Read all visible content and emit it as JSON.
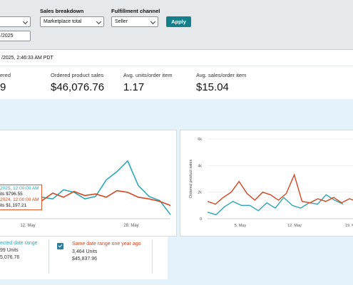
{
  "filters": {
    "date_range_end_partial": "/2025",
    "sales_breakdown_label": "Sales breakdown",
    "sales_breakdown_value": "Marketplace total",
    "fulfillment_label": "Fulfillment channel",
    "fulfillment_value": "Seller",
    "apply_label": "Apply"
  },
  "timestamp": "/2025, 2:46:33 AM PDT",
  "metrics": [
    {
      "label": "ered",
      "value": "9"
    },
    {
      "label": "Ordered product sales",
      "value": "$46,076.76"
    },
    {
      "label": "Avg. units/order item",
      "value": "1.17"
    },
    {
      "label": "Avg. sales/order item",
      "value": "$15.04"
    }
  ],
  "chart_left": {
    "type": "line",
    "x_ticks": [
      "12. May",
      "28. May"
    ],
    "tooltip": {
      "line1": "2025, 12:00:00 AM",
      "line2": "its $796.55",
      "line3": "2024, 12:00:00 AM",
      "line4": "its $1,197.21"
    },
    "series": [
      {
        "color": "#2ea7b5",
        "values": [
          0.16,
          0.22,
          0.28,
          0.25,
          0.26,
          0.24,
          0.35,
          0.32,
          0.24,
          0.27,
          0.47,
          0.57,
          0.7,
          0.4,
          0.27,
          0.22,
          0.05
        ]
      },
      {
        "color": "#d3461f",
        "values": [
          0.3,
          0.28,
          0.33,
          0.3,
          0.22,
          0.31,
          0.26,
          0.33,
          0.28,
          0.3,
          0.26,
          0.34,
          0.32,
          0.26,
          0.24,
          0.21,
          0.16
        ]
      }
    ]
  },
  "chart_right": {
    "type": "line",
    "ylabel": "Ordered product sales",
    "y_ticks": [
      "6k",
      "4k",
      "2k",
      "0"
    ],
    "x_ticks": [
      "5. May",
      "12. May",
      "19. M"
    ],
    "ylim": [
      0,
      6000
    ],
    "series": [
      {
        "color": "#2ea7b5",
        "values": [
          500,
          300,
          900,
          1300,
          1000,
          1000,
          600,
          1200,
          800,
          1600,
          1000,
          800,
          1200,
          1100,
          1800,
          1400,
          1100
        ]
      },
      {
        "color": "#d3461f",
        "values": [
          1300,
          1100,
          1600,
          2000,
          2800,
          1900,
          1400,
          2000,
          1800,
          1400,
          1900,
          3300,
          1300,
          1200,
          1500,
          1300,
          1600,
          1200,
          1500,
          1300
        ]
      }
    ]
  },
  "legend": {
    "current": {
      "title": "ected date range",
      "units": "99 Units",
      "sales": "5,076.76"
    },
    "previous": {
      "title": "Same date range one year ago",
      "units": "3,464 Units",
      "sales": "$45,837.96"
    }
  },
  "colors": {
    "teal": "#2ea7b5",
    "orange": "#d3461f",
    "accent": "#127f8a"
  }
}
